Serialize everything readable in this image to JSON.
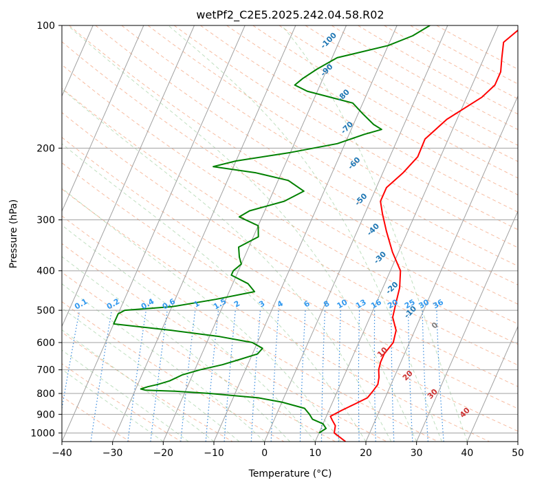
{
  "chart_data": {
    "type": "line",
    "title": "wetPf2_C2E5.2025.242.04.58.R02",
    "xlabel": "Temperature (°C)",
    "ylabel": "Pressure (hPa)",
    "xlim": [
      -40,
      50
    ],
    "ylim": [
      1050,
      100
    ],
    "y_scale": "log",
    "grid": true,
    "x_ticks": [
      -40,
      -30,
      -20,
      -10,
      0,
      10,
      20,
      30,
      40,
      50
    ],
    "y_ticks": [
      100,
      200,
      300,
      400,
      500,
      600,
      700,
      800,
      900,
      1000
    ],
    "series": [
      {
        "color": "#ff0000",
        "points": [
          [
            1050,
            16.0
          ],
          [
            1000,
            13.0
          ],
          [
            960,
            12.6
          ],
          [
            930,
            11.5
          ],
          [
            910,
            10.8
          ],
          [
            880,
            12.5
          ],
          [
            850,
            14.5
          ],
          [
            820,
            16.5
          ],
          [
            790,
            17.0
          ],
          [
            760,
            17.4
          ],
          [
            730,
            17.0
          ],
          [
            700,
            16.3
          ],
          [
            670,
            16.0
          ],
          [
            640,
            16.0
          ],
          [
            600,
            16.8
          ],
          [
            560,
            16.3
          ],
          [
            520,
            14.5
          ],
          [
            480,
            13.9
          ],
          [
            440,
            13.3
          ],
          [
            400,
            12.0
          ],
          [
            360,
            8.8
          ],
          [
            320,
            5.8
          ],
          [
            290,
            3.5
          ],
          [
            270,
            2.0
          ],
          [
            250,
            2.0
          ],
          [
            230,
            4.0
          ],
          [
            210,
            5.5
          ],
          [
            190,
            5.4
          ],
          [
            170,
            8.0
          ],
          [
            150,
            13.0
          ],
          [
            140,
            14.5
          ],
          [
            130,
            14.5
          ],
          [
            120,
            13.5
          ],
          [
            110,
            12.5
          ],
          [
            100,
            15.0
          ]
        ]
      },
      {
        "color": "#008000",
        "points": [
          [
            1000,
            10.0
          ],
          [
            975,
            11.0
          ],
          [
            950,
            10.0
          ],
          [
            925,
            7.5
          ],
          [
            900,
            6.5
          ],
          [
            870,
            5.0
          ],
          [
            840,
            0.0
          ],
          [
            820,
            -5.0
          ],
          [
            800,
            -15.0
          ],
          [
            790,
            -22.0
          ],
          [
            785,
            -28.0
          ],
          [
            780,
            -29.0
          ],
          [
            770,
            -27.8
          ],
          [
            760,
            -26.0
          ],
          [
            745,
            -24.0
          ],
          [
            720,
            -22.0
          ],
          [
            700,
            -19.0
          ],
          [
            680,
            -15.0
          ],
          [
            660,
            -12.0
          ],
          [
            640,
            -9.0
          ],
          [
            620,
            -8.5
          ],
          [
            600,
            -11.0
          ],
          [
            580,
            -18.0
          ],
          [
            560,
            -28.0
          ],
          [
            540,
            -40.0
          ],
          [
            510,
            -40.0
          ],
          [
            500,
            -39.0
          ],
          [
            490,
            -30.0
          ],
          [
            470,
            -22.0
          ],
          [
            450,
            -15.0
          ],
          [
            430,
            -17.0
          ],
          [
            410,
            -21.0
          ],
          [
            400,
            -21.0
          ],
          [
            385,
            -20.0
          ],
          [
            370,
            -21.0
          ],
          [
            350,
            -22.0
          ],
          [
            330,
            -19.0
          ],
          [
            310,
            -20.0
          ],
          [
            295,
            -24.5
          ],
          [
            285,
            -23.0
          ],
          [
            270,
            -17.0
          ],
          [
            255,
            -14.0
          ],
          [
            240,
            -18.0
          ],
          [
            230,
            -25.0
          ],
          [
            222,
            -34.0
          ],
          [
            215,
            -30.0
          ],
          [
            205,
            -20.0
          ],
          [
            195,
            -11.5
          ],
          [
            185,
            -7.0
          ],
          [
            180,
            -4.0
          ],
          [
            175,
            -6.0
          ],
          [
            165,
            -9.0
          ],
          [
            155,
            -12.0
          ],
          [
            145,
            -22.0
          ],
          [
            140,
            -25.0
          ],
          [
            135,
            -24.0
          ],
          [
            128,
            -22.0
          ],
          [
            120,
            -19.0
          ],
          [
            112,
            -10.0
          ],
          [
            106,
            -6.0
          ],
          [
            100,
            -3.5
          ]
        ]
      }
    ],
    "annotations": {
      "dry_adiabats": [
        "-100",
        "-90",
        "-80",
        "-70",
        "-60",
        "-50",
        "-40",
        "-30",
        "-20",
        "-10"
      ],
      "mixing_ratios": [
        "0.1",
        "0.2",
        "0.4",
        "0.6",
        "1",
        "1.5",
        "2",
        "3",
        "4",
        "6",
        "8",
        "10",
        "13",
        "16",
        "20",
        "25",
        "30",
        "36"
      ],
      "moist_adiabats": [
        "0",
        "10",
        "20",
        "30",
        "40"
      ]
    }
  }
}
